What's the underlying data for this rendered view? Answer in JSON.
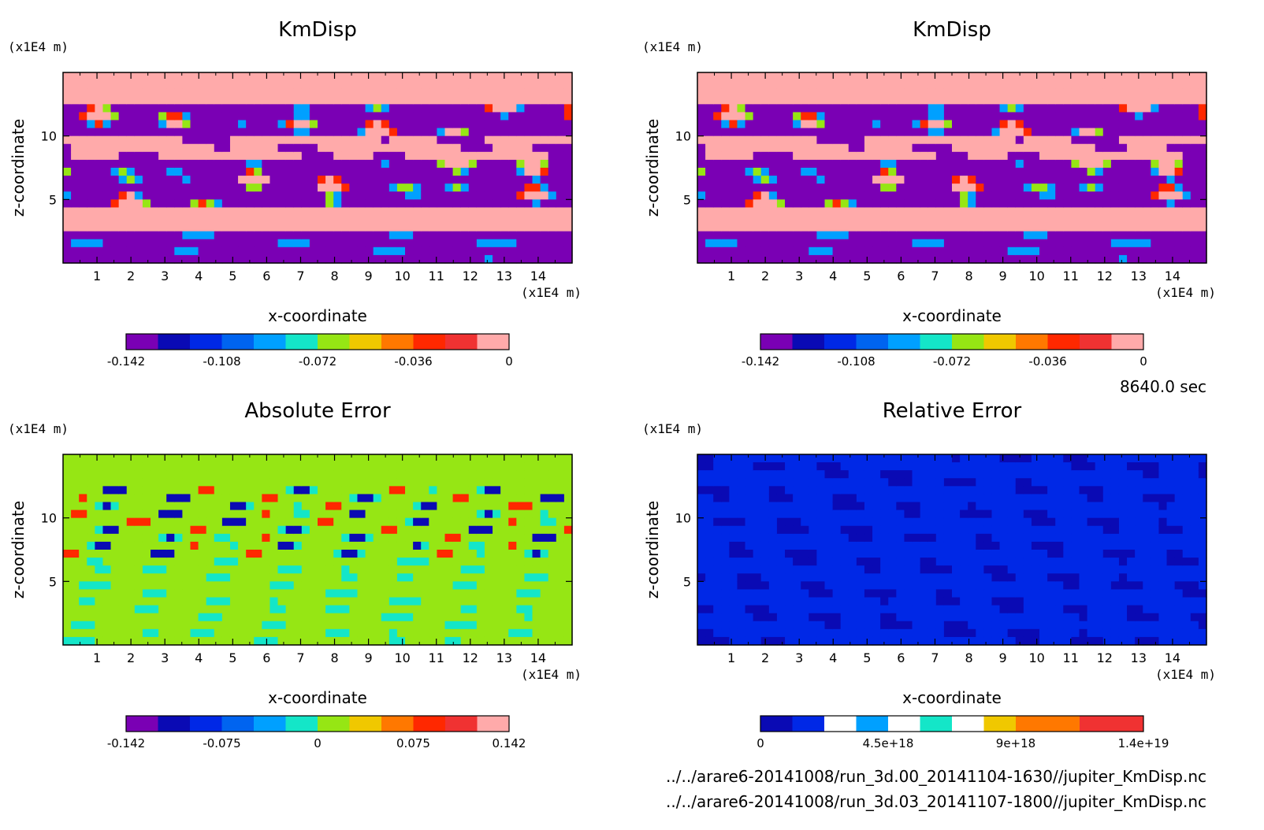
{
  "footer": {
    "time_label": "8640.0 sec",
    "file_1": "../../arare6-20141008/run_3d.00_20141104-1630//jupiter_KmDisp.nc",
    "file_2": "../../arare6-20141008/run_3d.03_20141107-1800//jupiter_KmDisp.nc"
  },
  "chart_data": [
    {
      "type": "heatmap",
      "title": "KmDisp",
      "xlabel": "x-coordinate",
      "ylabel": "z-coordinate",
      "x_unit": "(x1E4 m)",
      "y_unit": "(x1E4 m)",
      "xlim": [
        0,
        15
      ],
      "ylim": [
        0,
        15
      ],
      "x_ticks": [
        "1",
        "2",
        "3",
        "4",
        "5",
        "6",
        "7",
        "8",
        "9",
        "10",
        "11",
        "12",
        "13",
        "14"
      ],
      "y_ticks": [
        "5",
        "10"
      ],
      "colorbar": {
        "levels": 12,
        "min": -0.142,
        "max": 0,
        "tick_labels": [
          "-0.142",
          "-0.108",
          "-0.072",
          "-0.036",
          "0"
        ],
        "colors": [
          "#7a00b4",
          "#0a0ab4",
          "#0028e6",
          "#0064f0",
          "#00a0ff",
          "#14e6c8",
          "#96e614",
          "#f0c800",
          "#ff7800",
          "#ff2800",
          "#f03232",
          "#ffaaaa"
        ]
      }
    },
    {
      "type": "heatmap",
      "title": "KmDisp",
      "xlabel": "x-coordinate",
      "ylabel": "z-coordinate",
      "x_unit": "(x1E4 m)",
      "y_unit": "(x1E4 m)",
      "xlim": [
        0,
        15
      ],
      "ylim": [
        0,
        15
      ],
      "x_ticks": [
        "1",
        "2",
        "3",
        "4",
        "5",
        "6",
        "7",
        "8",
        "9",
        "10",
        "11",
        "12",
        "13",
        "14"
      ],
      "y_ticks": [
        "5",
        "10"
      ],
      "colorbar": {
        "levels": 12,
        "min": -0.142,
        "max": 0,
        "tick_labels": [
          "-0.142",
          "-0.108",
          "-0.072",
          "-0.036",
          "0"
        ],
        "colors": [
          "#7a00b4",
          "#0a0ab4",
          "#0028e6",
          "#0064f0",
          "#00a0ff",
          "#14e6c8",
          "#96e614",
          "#f0c800",
          "#ff7800",
          "#ff2800",
          "#f03232",
          "#ffaaaa"
        ]
      }
    },
    {
      "type": "heatmap",
      "title": "Absolute Error",
      "xlabel": "x-coordinate",
      "ylabel": "z-coordinate",
      "x_unit": "(x1E4 m)",
      "y_unit": "(x1E4 m)",
      "xlim": [
        0,
        15
      ],
      "ylim": [
        0,
        15
      ],
      "x_ticks": [
        "1",
        "2",
        "3",
        "4",
        "5",
        "6",
        "7",
        "8",
        "9",
        "10",
        "11",
        "12",
        "13",
        "14"
      ],
      "y_ticks": [
        "5",
        "10"
      ],
      "colorbar": {
        "levels": 12,
        "min": -0.142,
        "max": 0.142,
        "tick_labels": [
          "-0.142",
          "-0.075",
          "0",
          "0.075",
          "0.142"
        ],
        "colors": [
          "#7a00b4",
          "#0a0ab4",
          "#0028e6",
          "#0064f0",
          "#00a0ff",
          "#14e6c8",
          "#96e614",
          "#f0c800",
          "#ff7800",
          "#ff2800",
          "#f03232",
          "#ffaaaa"
        ]
      }
    },
    {
      "type": "heatmap",
      "title": "Relative Error",
      "xlabel": "x-coordinate",
      "ylabel": "z-coordinate",
      "x_unit": "(x1E4 m)",
      "y_unit": "(x1E4 m)",
      "xlim": [
        0,
        15
      ],
      "ylim": [
        0,
        15
      ],
      "x_ticks": [
        "1",
        "2",
        "3",
        "4",
        "5",
        "6",
        "7",
        "8",
        "9",
        "10",
        "11",
        "12",
        "13",
        "14"
      ],
      "y_ticks": [
        "5",
        "10"
      ],
      "colorbar": {
        "levels": 12,
        "min": 0,
        "max": 1.4e+19,
        "tick_labels": [
          "0",
          "4.5e+18",
          "9e+18",
          "1.4e+19"
        ],
        "colors": [
          "#0a0ab4",
          "#0028e6",
          "#ffffff",
          "#00a0ff",
          "#ffffff",
          "#14e6c8",
          "#ffffff",
          "#f0c800",
          "#ff7800",
          "#ff7800",
          "#f03232",
          "#f03232"
        ]
      }
    }
  ]
}
